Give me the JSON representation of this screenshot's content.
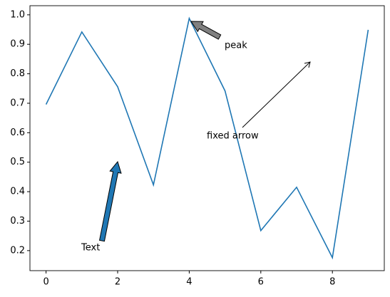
{
  "chart_data": {
    "type": "line",
    "x": [
      0,
      1,
      2,
      3,
      4,
      5,
      6,
      7,
      8,
      9
    ],
    "series": [
      {
        "color": "#1f77b4",
        "values": [
          0.696,
          0.942,
          0.756,
          0.423,
          0.988,
          0.742,
          0.268,
          0.415,
          0.176,
          0.949
        ]
      }
    ],
    "xlim": [
      -0.45,
      9.45
    ],
    "xticks": [
      0,
      2,
      4,
      6,
      8
    ],
    "ylim": [
      0.132,
      1.031
    ],
    "yticks": [
      0.2,
      0.3,
      0.4,
      0.5,
      0.6,
      0.7,
      0.8,
      0.9,
      {
        "value": 1.0,
        "label": "1.0"
      }
    ],
    "annotations": [
      "peak",
      "fixed arrow",
      "Text"
    ]
  }
}
